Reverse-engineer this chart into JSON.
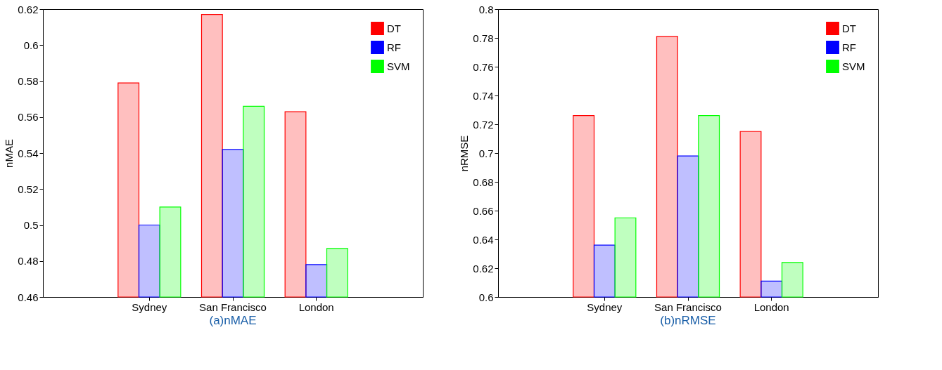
{
  "chart_data": [
    {
      "type": "bar",
      "title": "(a)nMAE",
      "ylabel": "nMAE",
      "categories": [
        "Sydney",
        "San Francisco",
        "London"
      ],
      "series": [
        {
          "name": "DT",
          "color": "#ff0000",
          "values": [
            0.579,
            0.617,
            0.563
          ]
        },
        {
          "name": "RF",
          "color": "#0000ff",
          "values": [
            0.5,
            0.542,
            0.478
          ]
        },
        {
          "name": "SVM",
          "color": "#00ff00",
          "values": [
            0.51,
            0.566,
            0.487
          ]
        }
      ],
      "ylim": [
        0.46,
        0.62
      ],
      "yticks": [
        0.46,
        0.48,
        0.5,
        0.52,
        0.54,
        0.56,
        0.58,
        0.6,
        0.62
      ],
      "legend": "top right",
      "grid": false
    },
    {
      "type": "bar",
      "title": "(b)nRMSE",
      "ylabel": "nRMSE",
      "categories": [
        "Sydney",
        "San Francisco",
        "London"
      ],
      "series": [
        {
          "name": "DT",
          "color": "#ff0000",
          "values": [
            0.726,
            0.781,
            0.715
          ]
        },
        {
          "name": "RF",
          "color": "#0000ff",
          "values": [
            0.636,
            0.698,
            0.611
          ]
        },
        {
          "name": "SVM",
          "color": "#00ff00",
          "values": [
            0.655,
            0.726,
            0.624
          ]
        }
      ],
      "ylim": [
        0.6,
        0.8
      ],
      "yticks": [
        0.6,
        0.62,
        0.64,
        0.66,
        0.68,
        0.7,
        0.72,
        0.74,
        0.76,
        0.78,
        0.8
      ],
      "legend": "top right",
      "grid": false
    }
  ]
}
